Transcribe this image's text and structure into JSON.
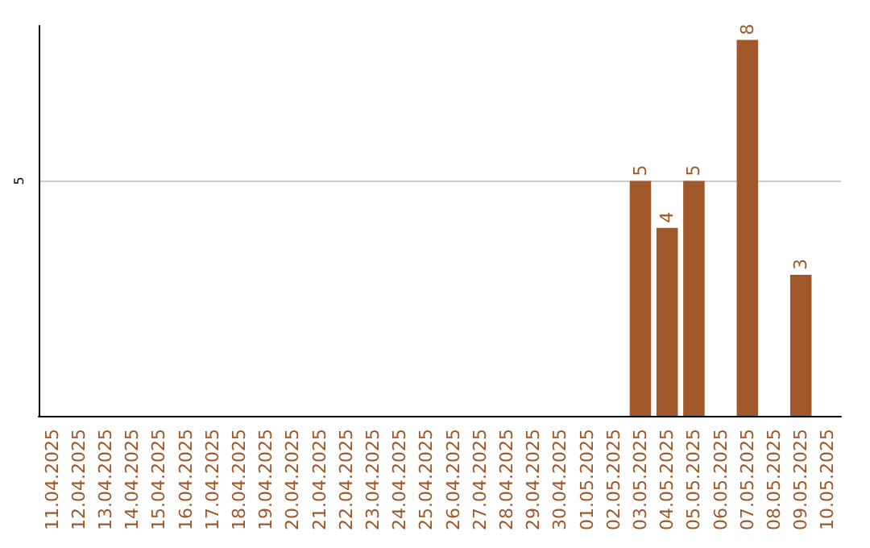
{
  "chart_data": {
    "type": "bar",
    "categories": [
      "11.04.2025",
      "12.04.2025",
      "13.04.2025",
      "14.04.2025",
      "15.04.2025",
      "16.04.2025",
      "17.04.2025",
      "18.04.2025",
      "19.04.2025",
      "20.04.2025",
      "21.04.2025",
      "22.04.2025",
      "23.04.2025",
      "24.04.2025",
      "25.04.2025",
      "26.04.2025",
      "27.04.2025",
      "28.04.2025",
      "29.04.2025",
      "30.04.2025",
      "01.05.2025",
      "02.05.2025",
      "03.05.2025",
      "04.05.2025",
      "05.05.2025",
      "06.05.2025",
      "07.05.2025",
      "08.05.2025",
      "09.05.2025",
      "10.05.2025"
    ],
    "values": [
      null,
      null,
      null,
      null,
      null,
      null,
      null,
      null,
      null,
      null,
      null,
      null,
      null,
      null,
      null,
      null,
      null,
      null,
      null,
      null,
      null,
      null,
      5,
      4,
      5,
      null,
      8,
      null,
      3,
      null
    ],
    "color": "#a0582a",
    "ylim": [
      0,
      8.3
    ],
    "yticks": [
      5
    ],
    "grid": "y",
    "data_labels": true
  }
}
